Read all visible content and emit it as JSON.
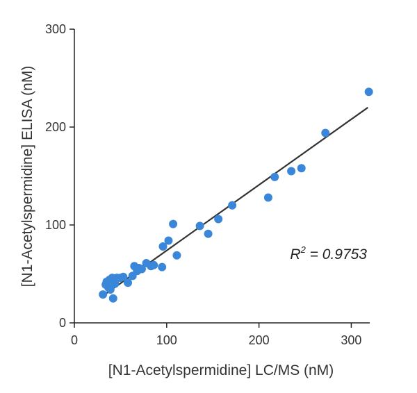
{
  "chart_data": {
    "type": "scatter",
    "xlabel": "[N1-Acetylspermidine] LC/MS (nM)",
    "ylabel": "[N1-Acetylspermidine] ELISA (nM)",
    "xlim": [
      0,
      320
    ],
    "ylim": [
      0,
      300
    ],
    "x_ticks": [
      "0",
      "100",
      "200",
      "300"
    ],
    "y_ticks": [
      "0",
      "100",
      "200",
      "300"
    ],
    "grid": false,
    "point_color": "#3a86d8",
    "line_color": "#333333",
    "points": [
      {
        "x": 31,
        "y": 29
      },
      {
        "x": 34,
        "y": 39
      },
      {
        "x": 35,
        "y": 42
      },
      {
        "x": 37,
        "y": 36
      },
      {
        "x": 38,
        "y": 44
      },
      {
        "x": 39,
        "y": 34
      },
      {
        "x": 41,
        "y": 46
      },
      {
        "x": 42,
        "y": 25
      },
      {
        "x": 44,
        "y": 40
      },
      {
        "x": 46,
        "y": 46
      },
      {
        "x": 50,
        "y": 46
      },
      {
        "x": 53,
        "y": 47
      },
      {
        "x": 58,
        "y": 41
      },
      {
        "x": 63,
        "y": 48
      },
      {
        "x": 65,
        "y": 58
      },
      {
        "x": 68,
        "y": 53
      },
      {
        "x": 70,
        "y": 56
      },
      {
        "x": 73,
        "y": 55
      },
      {
        "x": 78,
        "y": 61
      },
      {
        "x": 83,
        "y": 58
      },
      {
        "x": 86,
        "y": 59
      },
      {
        "x": 95,
        "y": 57
      },
      {
        "x": 96,
        "y": 78
      },
      {
        "x": 102,
        "y": 84
      },
      {
        "x": 107,
        "y": 101
      },
      {
        "x": 111,
        "y": 69
      },
      {
        "x": 136,
        "y": 99
      },
      {
        "x": 145,
        "y": 91
      },
      {
        "x": 156,
        "y": 106
      },
      {
        "x": 171,
        "y": 120
      },
      {
        "x": 210,
        "y": 128
      },
      {
        "x": 217,
        "y": 149
      },
      {
        "x": 235,
        "y": 155
      },
      {
        "x": 246,
        "y": 158
      },
      {
        "x": 272,
        "y": 194
      },
      {
        "x": 319,
        "y": 236
      }
    ],
    "fit_line": {
      "x": [
        30,
        318
      ],
      "y": [
        27,
        220
      ]
    },
    "annotation": {
      "prefix": "R",
      "sup": "2",
      "suffix": " = 0.9753"
    }
  }
}
